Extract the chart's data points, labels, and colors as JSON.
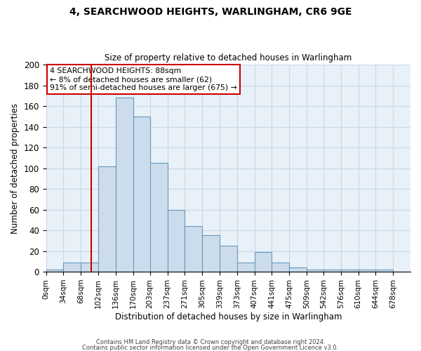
{
  "title1": "4, SEARCHWOOD HEIGHTS, WARLINGHAM, CR6 9GE",
  "title2": "Size of property relative to detached houses in Warlingham",
  "xlabel": "Distribution of detached houses by size in Warlingham",
  "ylabel": "Number of detached properties",
  "bin_edges": [
    0,
    34,
    68,
    102,
    136,
    170,
    203,
    237,
    271,
    305,
    339,
    373,
    407,
    441,
    475,
    509,
    542,
    576,
    610,
    644,
    678
  ],
  "bar_heights": [
    2,
    9,
    9,
    102,
    168,
    150,
    105,
    60,
    44,
    35,
    25,
    9,
    19,
    9,
    4,
    2,
    2,
    2,
    2,
    2
  ],
  "bar_color": "#ccdcec",
  "bar_edge_color": "#6699bb",
  "grid_color": "#c8d8e8",
  "vline_x": 88,
  "vline_color": "#cc0000",
  "annotation_text": "4 SEARCHWOOD HEIGHTS: 88sqm\n← 8% of detached houses are smaller (62)\n91% of semi-detached houses are larger (675) →",
  "annotation_box_color": "white",
  "annotation_box_edge": "#cc0000",
  "ylim": [
    0,
    200
  ],
  "yticks": [
    0,
    20,
    40,
    60,
    80,
    100,
    120,
    140,
    160,
    180,
    200
  ],
  "footer1": "Contains HM Land Registry data © Crown copyright and database right 2024.",
  "footer2": "Contains public sector information licensed under the Open Government Licence v3.0.",
  "background_color": "#e8f0f8"
}
